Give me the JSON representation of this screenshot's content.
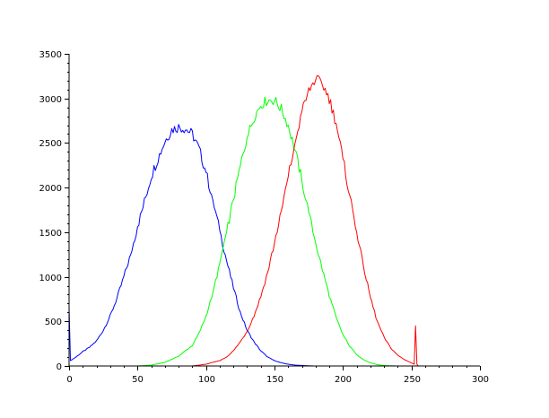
{
  "chart_data": {
    "type": "line",
    "title": "",
    "xlabel": "",
    "ylabel": "",
    "xlim": [
      0,
      300
    ],
    "ylim": [
      0,
      3500
    ],
    "x_ticks": [
      0,
      50,
      100,
      150,
      200,
      250,
      300
    ],
    "y_ticks": [
      0,
      500,
      1000,
      1500,
      2000,
      2500,
      3000,
      3500
    ],
    "x_minor_step": 10,
    "y_minor_step": 100,
    "grid": false,
    "legend": "none",
    "series": [
      {
        "color": "#0000ff",
        "x": [
          0,
          1,
          5,
          10,
          15,
          20,
          25,
          30,
          35,
          40,
          45,
          50,
          55,
          60,
          65,
          70,
          75,
          80,
          85,
          90,
          95,
          100,
          105,
          110,
          115,
          120,
          125,
          130,
          135,
          140,
          145,
          150,
          155,
          160,
          165,
          170,
          175,
          180,
          190,
          200,
          255
        ],
        "y": [
          650,
          60,
          100,
          160,
          210,
          280,
          400,
          560,
          760,
          1000,
          1250,
          1560,
          1840,
          2130,
          2330,
          2520,
          2650,
          2680,
          2660,
          2600,
          2430,
          2170,
          1860,
          1520,
          1180,
          880,
          600,
          400,
          270,
          170,
          100,
          60,
          35,
          20,
          10,
          5,
          2,
          0,
          0,
          0,
          0
        ]
      },
      {
        "color": "#00ff00",
        "x": [
          0,
          50,
          60,
          70,
          80,
          90,
          95,
          100,
          105,
          110,
          115,
          120,
          125,
          130,
          135,
          140,
          145,
          150,
          155,
          160,
          165,
          170,
          175,
          180,
          185,
          190,
          195,
          200,
          205,
          210,
          215,
          220,
          225,
          230,
          240,
          255
        ],
        "y": [
          0,
          0,
          10,
          40,
          110,
          230,
          370,
          560,
          820,
          1150,
          1500,
          1860,
          2240,
          2560,
          2790,
          2930,
          2980,
          2980,
          2880,
          2700,
          2420,
          2080,
          1720,
          1380,
          1080,
          790,
          540,
          350,
          220,
          130,
          70,
          35,
          15,
          5,
          0,
          0
        ]
      },
      {
        "color": "#ff0000",
        "x": [
          0,
          90,
          100,
          110,
          115,
          120,
          125,
          130,
          135,
          140,
          145,
          150,
          155,
          160,
          165,
          170,
          175,
          180,
          185,
          190,
          195,
          200,
          205,
          210,
          215,
          220,
          225,
          230,
          235,
          240,
          245,
          250,
          252,
          253,
          254,
          255,
          256,
          260,
          300
        ],
        "y": [
          0,
          0,
          20,
          60,
          100,
          170,
          270,
          390,
          560,
          780,
          1050,
          1380,
          1740,
          2120,
          2500,
          2850,
          3080,
          3220,
          3160,
          3000,
          2720,
          2320,
          1910,
          1500,
          1110,
          770,
          500,
          320,
          200,
          120,
          70,
          35,
          20,
          450,
          20,
          0,
          0,
          0,
          0
        ]
      }
    ]
  }
}
